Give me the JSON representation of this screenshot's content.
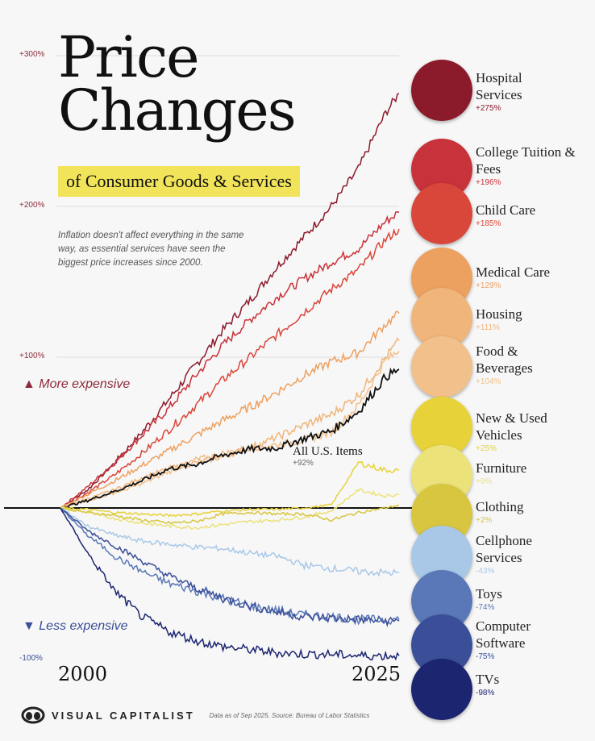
{
  "title": "Price Changes",
  "subtitle": "of Consumer Goods & Services",
  "description": "Inflation doesn't affect everything in the same way, as essential services have seen the biggest price increases since 2000.",
  "more_expensive": "▲ More expensive",
  "less_expensive": "▼ Less expensive",
  "brand": "VISUAL CAPITALIST",
  "source": "Data as of Sep 2025. Source: Bureau of Labor Statistics",
  "chart_data": {
    "type": "line",
    "x_labels": [
      "2000",
      "2025"
    ],
    "y_ticks": [
      "+300%",
      "+200%",
      "+100%",
      "-100%"
    ],
    "ylim": [
      -100,
      300
    ],
    "x": [
      2000,
      2002,
      2004,
      2006,
      2008,
      2010,
      2012,
      2014,
      2016,
      2018,
      2020,
      2022,
      2024,
      2025
    ],
    "series": [
      {
        "name": "Hospital Services",
        "label": "+275%",
        "color": "#8b1a2b",
        "values": [
          0,
          12,
          30,
          50,
          72,
          95,
          118,
          138,
          160,
          180,
          200,
          225,
          262,
          275
        ]
      },
      {
        "name": "College Tuition & Fees",
        "label": "+196%",
        "color": "#c8323a",
        "values": [
          0,
          14,
          30,
          48,
          66,
          88,
          108,
          125,
          140,
          152,
          163,
          172,
          190,
          196
        ]
      },
      {
        "name": "Child Care",
        "label": "+185%",
        "color": "#d9463a",
        "values": [
          0,
          10,
          22,
          36,
          52,
          68,
          85,
          100,
          115,
          130,
          145,
          158,
          178,
          185
        ]
      },
      {
        "name": "Medical Care",
        "label": "+129%",
        "color": "#eda160",
        "values": [
          0,
          9,
          18,
          28,
          38,
          48,
          58,
          67,
          77,
          88,
          97,
          103,
          122,
          129
        ]
      },
      {
        "name": "Housing",
        "label": "+111%",
        "color": "#f0b57a",
        "values": [
          0,
          6,
          12,
          20,
          26,
          30,
          34,
          40,
          47,
          55,
          62,
          75,
          100,
          111
        ]
      },
      {
        "name": "Food & Beverages",
        "label": "+104%",
        "color": "#f2c08a",
        "values": [
          0,
          5,
          10,
          16,
          24,
          32,
          36,
          40,
          42,
          45,
          50,
          68,
          98,
          104
        ]
      },
      {
        "name": "All U.S. Items",
        "label": "+92%",
        "color": "#111111",
        "values": [
          0,
          5,
          11,
          18,
          26,
          29,
          35,
          39,
          40,
          46,
          51,
          64,
          87,
          92
        ]
      },
      {
        "name": "New & Used Vehicles",
        "label": "+25%",
        "color": "#e8d23a",
        "values": [
          0,
          -1,
          -3,
          -4,
          -5,
          -4,
          -2,
          -1,
          -1,
          0,
          2,
          30,
          25,
          25
        ]
      },
      {
        "name": "Furniture",
        "label": "+9%",
        "color": "#ece27a",
        "values": [
          0,
          -3,
          -7,
          -10,
          -12,
          -13,
          -11,
          -9,
          -8,
          -6,
          -2,
          12,
          8,
          9
        ]
      },
      {
        "name": "Clothing",
        "label": "+2%",
        "color": "#d8c640",
        "values": [
          0,
          -3,
          -5,
          -8,
          -10,
          -9,
          -4,
          -3,
          -4,
          -4,
          -8,
          -3,
          0,
          2
        ]
      },
      {
        "name": "Cellphone Services",
        "label": "-43%",
        "color": "#a9c8e8",
        "values": [
          0,
          -12,
          -18,
          -22,
          -24,
          -26,
          -27,
          -30,
          -32,
          -38,
          -40,
          -42,
          -43,
          -43
        ]
      },
      {
        "name": "Toys",
        "label": "-74%",
        "color": "#5a78b8",
        "values": [
          0,
          -18,
          -32,
          -42,
          -50,
          -55,
          -60,
          -65,
          -68,
          -71,
          -72,
          -74,
          -74,
          -74
        ]
      },
      {
        "name": "Computer Software",
        "label": "-75%",
        "color": "#3a4f98",
        "values": [
          0,
          -15,
          -25,
          -35,
          -45,
          -53,
          -60,
          -65,
          -69,
          -72,
          -73,
          -74,
          -75,
          -75
        ]
      },
      {
        "name": "TVs",
        "label": "-98%",
        "color": "#1c2570",
        "values": [
          0,
          -30,
          -55,
          -72,
          -82,
          -88,
          -92,
          -94,
          -96,
          -97,
          -97,
          -98,
          -98,
          -98
        ]
      }
    ]
  }
}
